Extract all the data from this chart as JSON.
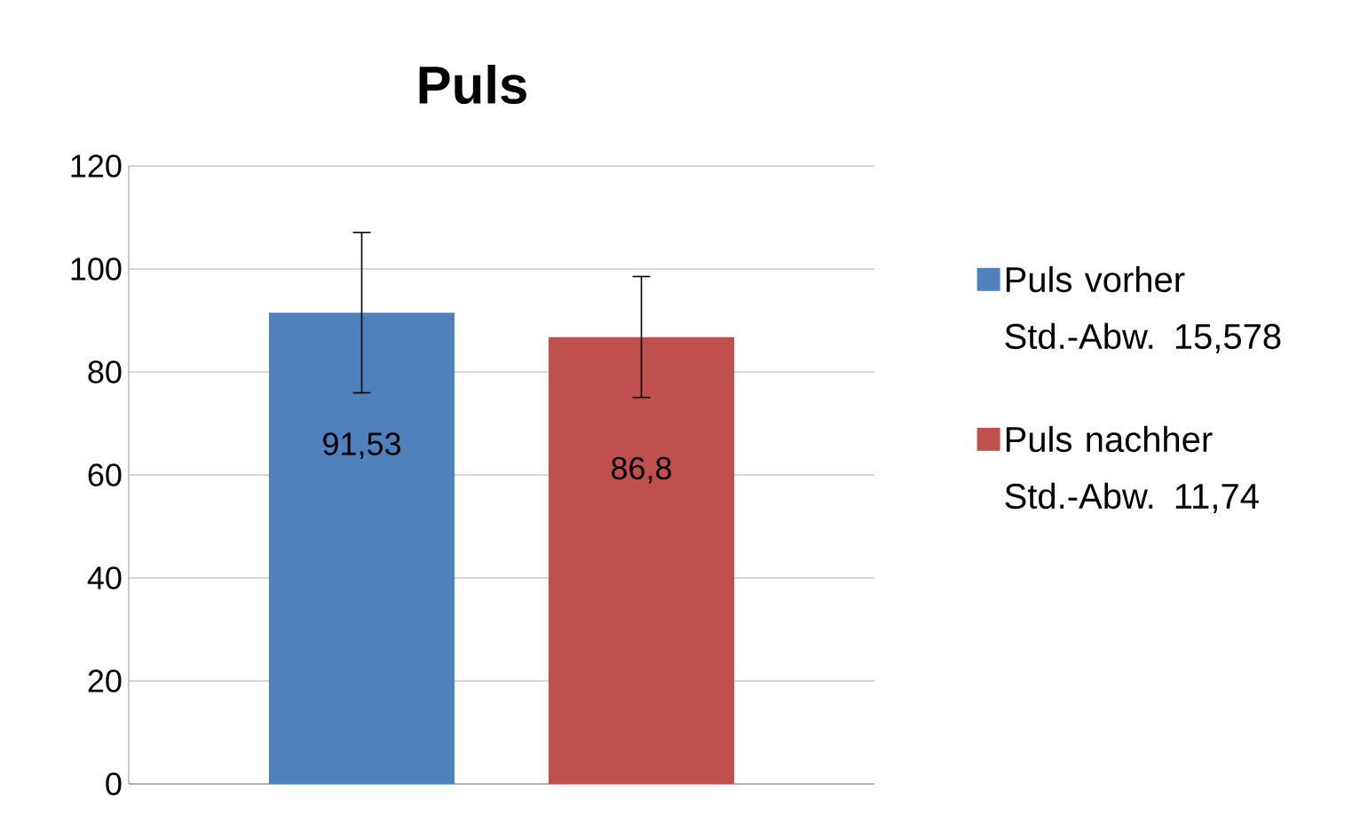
{
  "chart_data": {
    "type": "bar",
    "title": "Puls",
    "categories": [
      null
    ],
    "series": [
      {
        "name": "Puls vorher Std.-Abw. 15,578",
        "color": "#4f81bd",
        "values": [
          91.53
        ],
        "errors": [
          15.578
        ],
        "value_labels": [
          "91,53"
        ]
      },
      {
        "name": "Puls nachher Std.-Abw. 11,74",
        "color": "#c0504d",
        "values": [
          86.8
        ],
        "errors": [
          11.74
        ],
        "value_labels": [
          "86,8"
        ]
      }
    ],
    "ylim": [
      0,
      120
    ],
    "yticks": [
      0,
      20,
      40,
      60,
      80,
      100,
      120
    ],
    "grid": "y",
    "legend": "right"
  }
}
